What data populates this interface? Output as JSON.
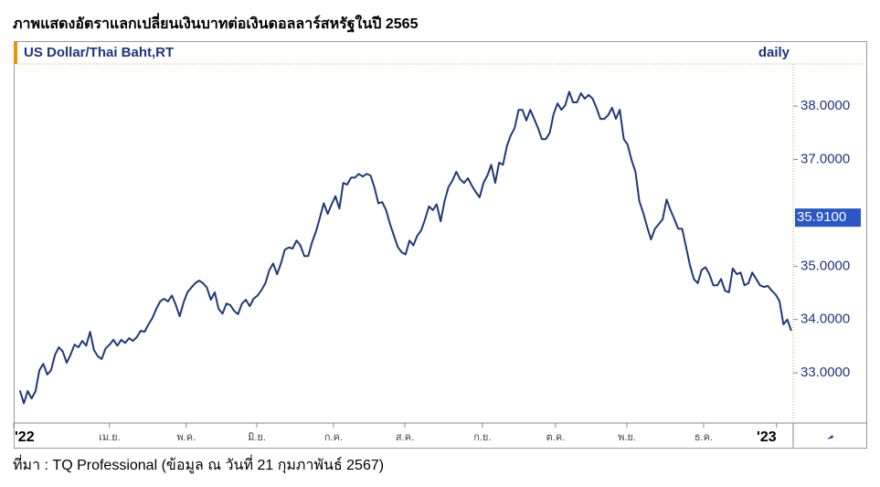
{
  "chart_data": {
    "type": "line",
    "title": "ภาพแสดงอัตราแลกเปลี่ยนเงินบาทต่อเงินดอลลาร์สหรัฐในปี 2565",
    "frequency": "daily",
    "source": "ที่มา : TQ Professional (ข้อมูล ณ วันที่ 21 กุมภาพันธ์ 2567)",
    "series": [
      {
        "name": "US Dollar/Thai Baht,RT",
        "color": "#1f3a7a",
        "values": [
          32.67,
          32.43,
          32.66,
          32.52,
          32.66,
          33.05,
          33.17,
          32.97,
          33.05,
          33.34,
          33.48,
          33.4,
          33.19,
          33.34,
          33.53,
          33.48,
          33.6,
          33.51,
          33.77,
          33.43,
          33.31,
          33.26,
          33.46,
          33.53,
          33.62,
          33.51,
          33.62,
          33.56,
          33.65,
          33.6,
          33.67,
          33.79,
          33.77,
          33.91,
          34.03,
          34.2,
          34.34,
          34.39,
          34.34,
          34.45,
          34.28,
          34.06,
          34.32,
          34.51,
          34.6,
          34.68,
          34.73,
          34.68,
          34.6,
          34.37,
          34.51,
          34.2,
          34.11,
          34.3,
          34.27,
          34.16,
          34.1,
          34.3,
          34.37,
          34.25,
          34.39,
          34.45,
          34.55,
          34.68,
          34.92,
          35.05,
          34.85,
          35.05,
          35.31,
          35.35,
          35.33,
          35.48,
          35.39,
          35.19,
          35.19,
          35.45,
          35.65,
          35.91,
          36.18,
          35.98,
          36.16,
          36.31,
          36.08,
          36.56,
          36.53,
          36.66,
          36.66,
          36.73,
          36.68,
          36.73,
          36.7,
          36.48,
          36.18,
          36.2,
          36.05,
          35.79,
          35.57,
          35.36,
          35.26,
          35.22,
          35.48,
          35.39,
          35.57,
          35.67,
          35.88,
          36.12,
          36.05,
          36.16,
          35.84,
          36.22,
          36.48,
          36.6,
          36.77,
          36.63,
          36.56,
          36.65,
          36.51,
          36.39,
          36.29,
          36.56,
          36.7,
          36.9,
          36.56,
          36.94,
          36.9,
          37.25,
          37.45,
          37.59,
          37.93,
          37.93,
          37.73,
          37.93,
          37.76,
          37.59,
          37.38,
          37.38,
          37.5,
          37.85,
          38.05,
          37.93,
          38.02,
          38.27,
          38.07,
          38.07,
          38.24,
          38.14,
          38.21,
          38.14,
          37.97,
          37.76,
          37.76,
          37.83,
          37.97,
          37.76,
          37.93,
          37.38,
          37.28,
          36.99,
          36.77,
          36.22,
          36.0,
          35.74,
          35.5,
          35.7,
          35.79,
          35.88,
          36.25,
          36.05,
          35.88,
          35.7,
          35.7,
          35.36,
          35.02,
          34.76,
          34.68,
          34.93,
          34.98,
          34.85,
          34.64,
          34.64,
          34.76,
          34.54,
          34.51,
          34.96,
          34.85,
          34.88,
          34.64,
          34.68,
          34.88,
          34.76,
          34.64,
          34.61,
          34.63,
          34.54,
          34.47,
          34.34,
          33.91,
          34.0,
          33.79
        ]
      }
    ],
    "last_value": {
      "value": 35.91,
      "label": "35.9100"
    },
    "xlim": [
      -1.6,
      198.5
    ],
    "xticks": [
      {
        "value": -1.6,
        "label": "'22"
      },
      {
        "value": 23,
        "label": "เม.ย."
      },
      {
        "value": 42.7,
        "label": "พ.ค."
      },
      {
        "value": 60.8,
        "label": "มิ.ย."
      },
      {
        "value": 80.5,
        "label": "ก.ค."
      },
      {
        "value": 98.8,
        "label": "ส.ค."
      },
      {
        "value": 118.7,
        "label": "ก.ย."
      },
      {
        "value": 137.5,
        "label": "ต.ค."
      },
      {
        "value": 155.8,
        "label": "พ.ย."
      },
      {
        "value": 175.5,
        "label": "ธ.ค."
      },
      {
        "value": 194.2,
        "label": "'23"
      }
    ],
    "ylim": [
      32.06,
      38.79
    ],
    "yticks": [
      {
        "value": 33,
        "label": "33.0000"
      },
      {
        "value": 34,
        "label": "34.0000"
      },
      {
        "value": 35,
        "label": "35.0000"
      },
      {
        "value": 37,
        "label": "37.0000"
      },
      {
        "value": 38,
        "label": "38.0000"
      }
    ]
  }
}
